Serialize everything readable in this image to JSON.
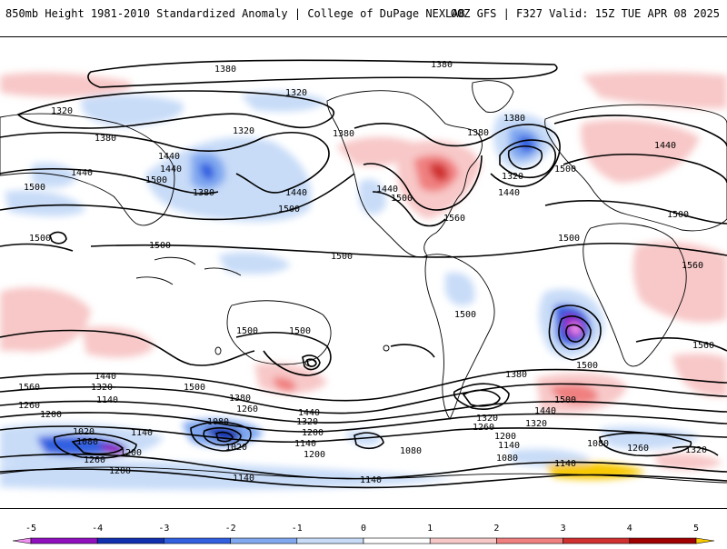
{
  "header": {
    "left_title": "850mb Height 1981-2010 Standardized Anomaly | College of DuPage NEXLAB",
    "right_title": "00Z GFS | F327 Valid: 15Z TUE APR 08 2025"
  },
  "colorbar": {
    "tick_labels": [
      "-5",
      "-4",
      "-3",
      "-2",
      "-1",
      "0",
      "1",
      "2",
      "3",
      "4",
      "5"
    ],
    "colors": [
      "#f090f0",
      "#9010c0",
      "#1030b0",
      "#3060e0",
      "#80a8f0",
      "#c8dcf8",
      "#ffffff",
      "#f8c8c8",
      "#f08080",
      "#d03030",
      "#a00000",
      "#f8a000",
      "#f8c800"
    ]
  },
  "contour_labels": [
    {
      "text": "1380"
    },
    {
      "text": "1380"
    },
    {
      "text": "1320"
    },
    {
      "text": "1320"
    },
    {
      "text": "1380"
    },
    {
      "text": "1440"
    },
    {
      "text": "1440"
    },
    {
      "text": "1500"
    },
    {
      "text": "1500"
    },
    {
      "text": "1320"
    },
    {
      "text": "1380"
    },
    {
      "text": "1500"
    },
    {
      "text": "1440"
    },
    {
      "text": "1500"
    },
    {
      "text": "1380"
    },
    {
      "text": "1380"
    },
    {
      "text": "1440"
    },
    {
      "text": "1440"
    },
    {
      "text": "1500"
    },
    {
      "text": "1560"
    },
    {
      "text": "1380"
    },
    {
      "text": "1320"
    },
    {
      "text": "1500"
    },
    {
      "text": "1440"
    },
    {
      "text": "1440"
    },
    {
      "text": "1500"
    },
    {
      "text": "1500"
    },
    {
      "text": "1560"
    },
    {
      "text": "1500"
    },
    {
      "text": "1500"
    },
    {
      "text": "1500"
    },
    {
      "text": "1500"
    },
    {
      "text": "1500"
    },
    {
      "text": "1560"
    },
    {
      "text": "1500"
    },
    {
      "text": "1500"
    },
    {
      "text": "1560"
    },
    {
      "text": "1440"
    },
    {
      "text": "1320"
    },
    {
      "text": "1260"
    },
    {
      "text": "1140"
    },
    {
      "text": "1200"
    },
    {
      "text": "1380"
    },
    {
      "text": "1260"
    },
    {
      "text": "1440"
    },
    {
      "text": "1320"
    },
    {
      "text": "1200"
    },
    {
      "text": "1140"
    },
    {
      "text": "1380"
    },
    {
      "text": "1500"
    },
    {
      "text": "1440"
    },
    {
      "text": "1320"
    },
    {
      "text": "1320"
    },
    {
      "text": "1260"
    },
    {
      "text": "1200"
    },
    {
      "text": "1140"
    },
    {
      "text": "1020"
    },
    {
      "text": "1080"
    },
    {
      "text": "1140"
    },
    {
      "text": "1200"
    },
    {
      "text": "1080"
    },
    {
      "text": "1020"
    },
    {
      "text": "1200"
    },
    {
      "text": "1260"
    },
    {
      "text": "1200"
    },
    {
      "text": "1080"
    },
    {
      "text": "1080"
    },
    {
      "text": "1140"
    },
    {
      "text": "1140"
    },
    {
      "text": "1080"
    },
    {
      "text": "1260"
    },
    {
      "text": "1320"
    }
  ]
}
